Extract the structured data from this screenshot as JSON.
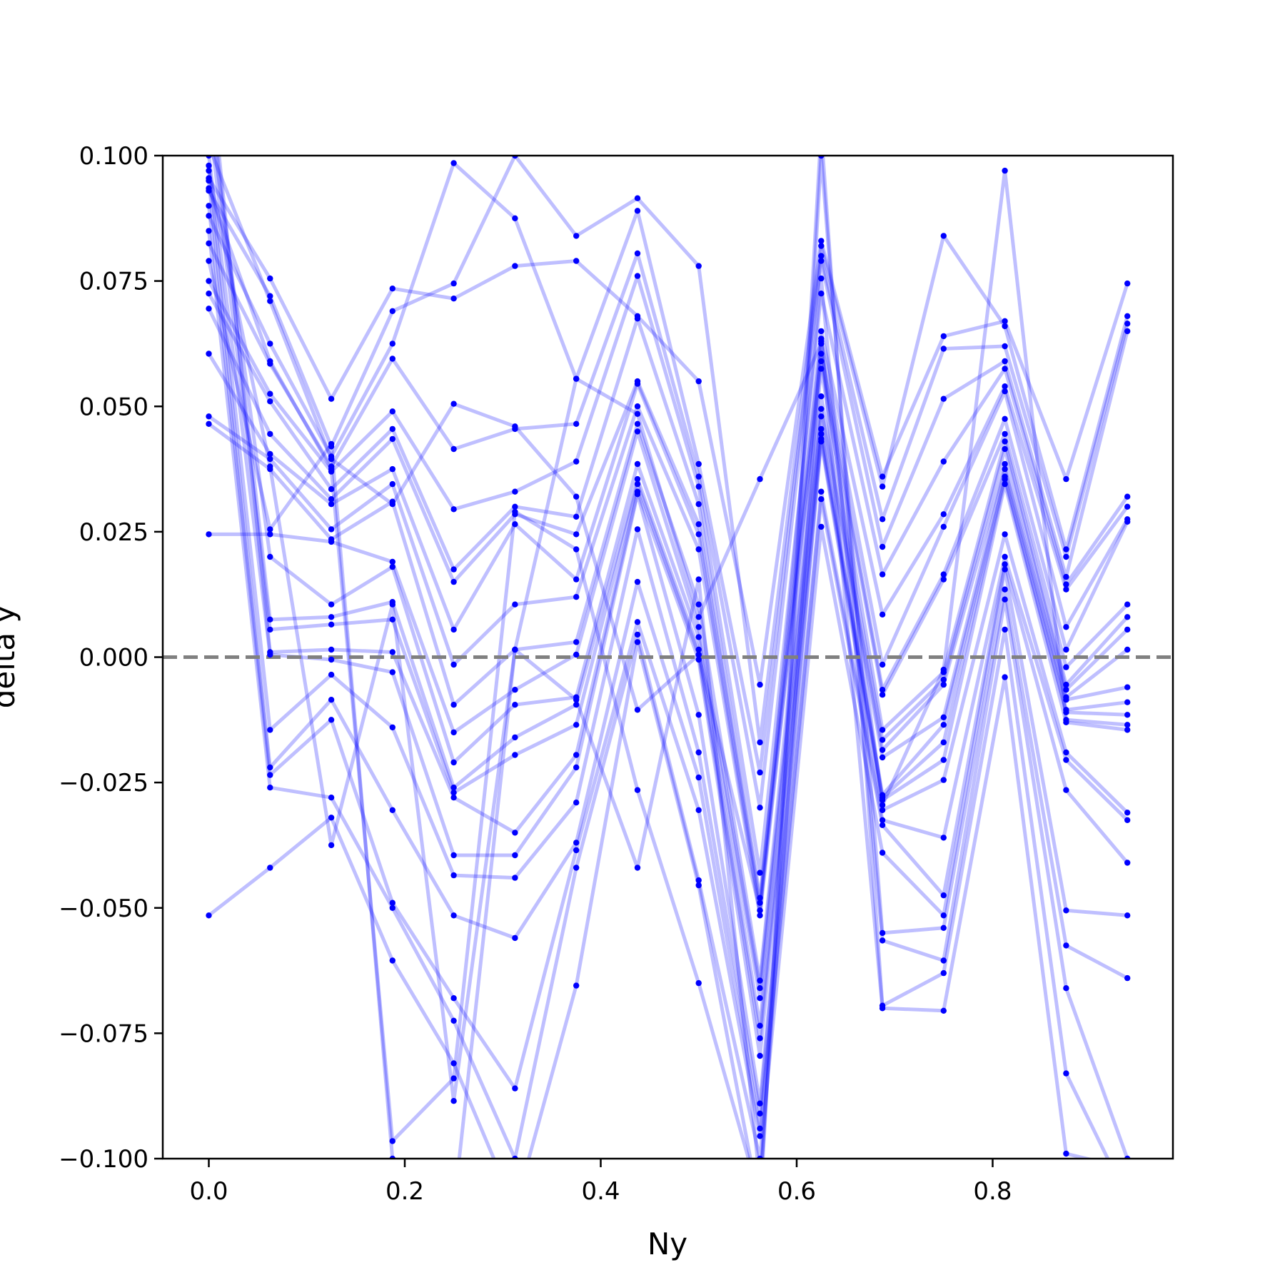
{
  "chart_data": {
    "type": "line",
    "title": "",
    "xlabel": "Ny",
    "ylabel": "delta y",
    "xlim": [
      -0.047,
      0.984
    ],
    "ylim": [
      -0.1,
      0.1
    ],
    "x_ticks": [
      "0.0",
      "0.2",
      "0.4",
      "0.6",
      "0.8"
    ],
    "x_tick_values": [
      0.0,
      0.2,
      0.4,
      0.6,
      0.8
    ],
    "y_ticks": [
      "0.100",
      "0.075",
      "0.050",
      "0.025",
      "0.000",
      "−0.025",
      "−0.050",
      "−0.075",
      "−0.100"
    ],
    "y_tick_values": [
      0.1,
      0.075,
      0.05,
      0.025,
      0.0,
      -0.025,
      -0.05,
      -0.075,
      -0.1
    ],
    "reference_line": {
      "y": 0.0,
      "style": "dashed",
      "color": "#808080"
    },
    "line_color": "#0000ff",
    "line_alpha": 0.25,
    "marker_color": "#0000ff",
    "grid": false,
    "legend": "none",
    "x": [
      0.0,
      0.0625,
      0.125,
      0.1875,
      0.25,
      0.3125,
      0.375,
      0.4375,
      0.5,
      0.5625,
      0.625,
      0.6875,
      0.75,
      0.8125,
      0.875,
      0.9375
    ],
    "series": [
      {
        "values": [
          0.0955,
          0.0755,
          0.0515,
          0.0735,
          0.0715,
          0.078,
          0.079,
          0.068,
          0.055,
          -0.0055,
          0.083,
          0.036,
          0.064,
          0.067,
          0.0355,
          0.0745
        ]
      },
      {
        "values": [
          0.093,
          0.072,
          0.042,
          0.069,
          0.0745,
          0.1,
          0.084,
          0.0915,
          0.078,
          -0.017,
          0.082,
          0.034,
          0.084,
          0.066,
          0.0215,
          0.068
        ]
      },
      {
        "values": [
          0.088,
          0.0625,
          0.04,
          0.0625,
          0.0985,
          0.0875,
          0.0555,
          0.089,
          0.0385,
          -0.023,
          0.08,
          0.0275,
          0.0615,
          0.062,
          0.02,
          0.0665
        ]
      },
      {
        "values": [
          0.0825,
          0.0585,
          0.038,
          0.0595,
          0.0415,
          0.0455,
          0.0465,
          0.0805,
          0.036,
          -0.03,
          0.079,
          0.022,
          0.0515,
          0.059,
          0.016,
          0.065
        ]
      },
      {
        "values": [
          0.075,
          0.0525,
          0.037,
          0.049,
          0.0295,
          0.033,
          0.039,
          0.076,
          0.034,
          -0.043,
          0.0725,
          0.0165,
          0.039,
          0.0575,
          0.0145,
          0.032
        ]
      },
      {
        "values": [
          0.0725,
          0.051,
          0.0335,
          0.0455,
          0.0175,
          0.03,
          0.028,
          0.0675,
          0.0305,
          -0.048,
          0.065,
          0.0085,
          0.0285,
          0.054,
          0.0135,
          0.03
        ]
      },
      {
        "values": [
          0.0695,
          0.0445,
          0.0315,
          0.0435,
          0.015,
          0.0285,
          0.0245,
          0.055,
          0.0265,
          -0.049,
          0.063,
          -0.0015,
          0.026,
          0.053,
          0.006,
          0.0275
        ]
      },
      {
        "values": [
          0.0605,
          0.0405,
          0.0305,
          0.0375,
          0.0055,
          0.0265,
          0.0155,
          0.0545,
          0.0245,
          -0.0505,
          0.0605,
          -0.0065,
          0.0165,
          0.0475,
          0.0015,
          0.027
        ]
      },
      {
        "values": [
          0.048,
          0.0395,
          0.0255,
          0.0345,
          -0.0015,
          0.0105,
          0.012,
          0.05,
          0.0215,
          -0.0515,
          0.059,
          -0.0075,
          0.0155,
          0.0445,
          -0.002,
          0.0105
        ]
      },
      {
        "values": [
          0.0465,
          0.0375,
          0.0235,
          0.031,
          -0.0095,
          0.0015,
          0.003,
          0.0465,
          0.0105,
          -0.0645,
          0.0575,
          -0.0145,
          -0.003,
          0.043,
          -0.0055,
          0.008
        ]
      },
      {
        "values": [
          0.0245,
          0.0245,
          0.023,
          0.019,
          -0.015,
          -0.0065,
          0.0005,
          0.045,
          0.006,
          -0.066,
          0.052,
          -0.0165,
          -0.0045,
          0.0415,
          -0.0065,
          0.0055
        ]
      },
      {
        "values": [
          0.11,
          0.02,
          0.0105,
          0.018,
          -0.021,
          -0.0095,
          -0.008,
          0.0385,
          0.004,
          -0.068,
          0.0495,
          -0.0185,
          -0.0055,
          0.0385,
          -0.008,
          0.0015
        ]
      },
      {
        "values": [
          0.115,
          0.0075,
          0.008,
          0.011,
          -0.026,
          -0.016,
          -0.0095,
          0.0355,
          0.0015,
          -0.0735,
          0.048,
          -0.02,
          -0.012,
          0.0375,
          -0.0085,
          -0.006
        ]
      },
      {
        "values": [
          0.108,
          0.0055,
          0.0065,
          0.0075,
          -0.027,
          -0.0195,
          -0.0135,
          0.0345,
          0.0005,
          -0.076,
          0.0455,
          -0.0275,
          -0.0135,
          0.036,
          -0.0105,
          -0.009
        ]
      },
      {
        "values": [
          0.12,
          0.001,
          0.0015,
          0.001,
          -0.028,
          -0.035,
          -0.0195,
          0.033,
          -0.0005,
          -0.0795,
          0.0445,
          -0.028,
          -0.017,
          0.0355,
          -0.011,
          -0.0115
        ]
      },
      {
        "values": [
          0.1,
          0.0005,
          -0.0005,
          -0.003,
          -0.0395,
          -0.0395,
          -0.022,
          0.0325,
          -0.0115,
          -0.089,
          0.0435,
          -0.0285,
          -0.0205,
          0.0345,
          -0.013,
          -0.0145
        ]
      },
      {
        "values": [
          0.098,
          -0.0145,
          -0.0035,
          -0.014,
          -0.0435,
          -0.044,
          -0.029,
          0.0255,
          -0.019,
          -0.091,
          0.043,
          -0.0305,
          -0.0245,
          0.0245,
          -0.019,
          -0.031
        ]
      },
      {
        "values": [
          0.095,
          -0.022,
          -0.0085,
          -0.0305,
          -0.0515,
          -0.056,
          -0.037,
          0.015,
          -0.024,
          -0.094,
          0.033,
          -0.0325,
          -0.036,
          0.02,
          -0.0205,
          -0.0325
        ]
      },
      {
        "values": [
          0.09,
          -0.0235,
          -0.0125,
          -0.049,
          -0.068,
          -0.086,
          -0.0385,
          0.007,
          -0.0305,
          -0.0955,
          0.0315,
          -0.0335,
          -0.0475,
          0.0185,
          -0.0265,
          -0.041
        ]
      },
      {
        "values": [
          0.085,
          -0.026,
          -0.028,
          -0.05,
          -0.0725,
          -0.1,
          -0.042,
          0.0045,
          -0.0445,
          -0.1,
          0.026,
          -0.039,
          -0.0515,
          0.0175,
          -0.0505,
          -0.0515
        ]
      },
      {
        "values": [
          -0.0515,
          -0.042,
          -0.032,
          -0.0605,
          -0.081,
          -0.11,
          -0.0655,
          0.003,
          -0.0455,
          -0.11,
          0.1,
          -0.055,
          -0.054,
          0.0135,
          -0.0575,
          -0.064
        ]
      },
      {
        "values": [
          0.102,
          0.071,
          0.0395,
          0.0305,
          0.0505,
          0.046,
          0.032,
          -0.0105,
          0.0005,
          -0.0505,
          0.0755,
          -0.0565,
          -0.0605,
          0.0115,
          -0.066,
          -0.1
        ]
      },
      {
        "values": [
          0.0935,
          0.059,
          0.0375,
          -0.0965,
          -0.084,
          0.029,
          0.0215,
          -0.0265,
          -0.065,
          -0.108,
          0.105,
          -0.0695,
          -0.063,
          0.0055,
          -0.083,
          -0.108
        ]
      },
      {
        "values": [
          0.097,
          0.038,
          -0.0375,
          0.0105,
          -0.0885,
          0.0015,
          -0.0085,
          -0.042,
          0.0155,
          -0.105,
          0.0635,
          -0.07,
          -0.0705,
          -0.004,
          -0.099,
          -0.102
        ]
      },
      {
        "values": [
          0.079,
          0.0255,
          0.0425,
          -0.1,
          -0.11,
          0.0015,
          0.0555,
          0.0485,
          0.008,
          0.0355,
          0.0625,
          -0.0295,
          -0.0025,
          0.097,
          -0.0125,
          -0.0135
        ]
      }
    ]
  }
}
